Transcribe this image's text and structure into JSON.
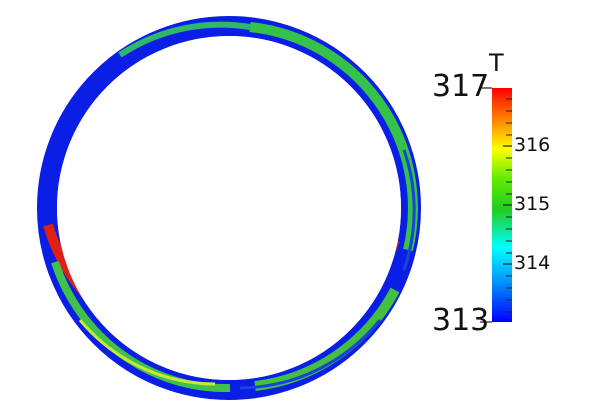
{
  "colorbar": {
    "title": "T",
    "min_label": "313",
    "max_label": "317",
    "tick_labels": [
      "316",
      "315",
      "314"
    ],
    "min": 313,
    "max": 317,
    "colormap": [
      "#0000ff",
      "#00aaff",
      "#00ffff",
      "#22cc22",
      "#66ee00",
      "#ffff00",
      "#ff8800",
      "#ff0000"
    ]
  },
  "field": {
    "quantity": "T",
    "cool_color": "#0a1ee6",
    "mid_color": "#3ec24a",
    "warm_color": "#e02010"
  }
}
